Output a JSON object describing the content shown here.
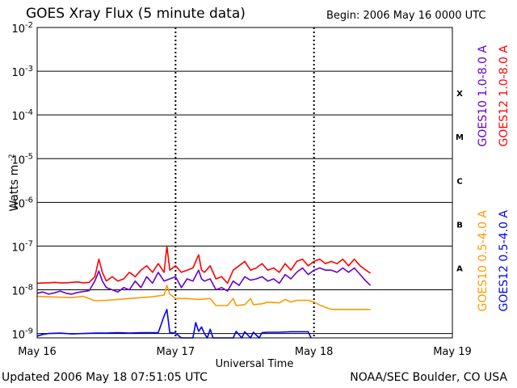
{
  "header": {
    "title": "GOES Xray Flux (5 minute data)",
    "begin": "Begin:  2006 May 16 0000 UTC"
  },
  "footer": {
    "updated": "Updated 2006 May 18 07:51:05 UTC",
    "credit": "NOAA/SEC Boulder, CO USA"
  },
  "chart_data": {
    "type": "line",
    "title": "GOES Xray Flux (5 minute data)",
    "xlabel": "Universal Time",
    "ylabel": "Watts m",
    "ylabel_exponent": "-2",
    "x_unit": "hours since 2006 May 16 0000 UTC",
    "xlim": [
      0,
      72
    ],
    "x_ticks": [
      {
        "x": 0,
        "label": "May 16"
      },
      {
        "x": 24,
        "label": "May 17"
      },
      {
        "x": 48,
        "label": "May 18"
      },
      {
        "x": 72,
        "label": "May 19"
      }
    ],
    "y_scale": "log",
    "ylim_exp": [
      -9.1,
      -2
    ],
    "y_ticks": [
      {
        "exp": -9,
        "base": "10",
        "power": "-9"
      },
      {
        "exp": -8,
        "base": "10",
        "power": "-8"
      },
      {
        "exp": -7,
        "base": "10",
        "power": "-7"
      },
      {
        "exp": -6,
        "base": "10",
        "power": "-6"
      },
      {
        "exp": -5,
        "base": "10",
        "power": "-5"
      },
      {
        "exp": -4,
        "base": "10",
        "power": "-4"
      },
      {
        "exp": -3,
        "base": "10",
        "power": "-3"
      },
      {
        "exp": -2,
        "base": "10",
        "power": "-2"
      }
    ],
    "flare_classes": [
      {
        "label": "A",
        "exp": -7.5
      },
      {
        "label": "B",
        "exp": -6.5
      },
      {
        "label": "C",
        "exp": -5.5
      },
      {
        "label": "M",
        "exp": -4.5
      },
      {
        "label": "X",
        "exp": -3.5
      }
    ],
    "grid": true,
    "legend_position": "right",
    "series": [
      {
        "name": "GOES10 1.0-8.0 A",
        "color": "#6600cc",
        "points": [
          [
            0,
            -8.08
          ],
          [
            1,
            -8.05
          ],
          [
            2,
            -8.1
          ],
          [
            3,
            -8.07
          ],
          [
            4,
            -8.03
          ],
          [
            5,
            -8.08
          ],
          [
            6,
            -8.1
          ],
          [
            7,
            -8.06
          ],
          [
            8,
            -8.04
          ],
          [
            9,
            -8.02
          ],
          [
            10,
            -7.8
          ],
          [
            10.7,
            -7.57
          ],
          [
            11.3,
            -7.8
          ],
          [
            12,
            -7.95
          ],
          [
            13,
            -8.0
          ],
          [
            14,
            -8.05
          ],
          [
            15,
            -7.95
          ],
          [
            16,
            -8.0
          ],
          [
            17,
            -7.8
          ],
          [
            18,
            -7.95
          ],
          [
            19,
            -7.7
          ],
          [
            20,
            -7.85
          ],
          [
            21,
            -7.6
          ],
          [
            22,
            -7.8
          ],
          [
            23,
            -7.75
          ],
          [
            24,
            -7.7
          ],
          [
            25,
            -7.95
          ],
          [
            26,
            -7.75
          ],
          [
            27,
            -7.8
          ],
          [
            28,
            -7.55
          ],
          [
            28.5,
            -7.75
          ],
          [
            29,
            -7.8
          ],
          [
            30,
            -7.75
          ],
          [
            31,
            -8.0
          ],
          [
            32,
            -7.95
          ],
          [
            33,
            -8.03
          ],
          [
            34,
            -7.8
          ],
          [
            35,
            -7.9
          ],
          [
            36,
            -7.7
          ],
          [
            37,
            -7.78
          ],
          [
            38,
            -7.75
          ],
          [
            39,
            -7.7
          ],
          [
            40,
            -7.8
          ],
          [
            41,
            -7.75
          ],
          [
            42,
            -7.85
          ],
          [
            43,
            -7.65
          ],
          [
            44,
            -7.75
          ],
          [
            45,
            -7.6
          ],
          [
            46,
            -7.5
          ],
          [
            47,
            -7.65
          ],
          [
            48,
            -7.55
          ],
          [
            49,
            -7.5
          ],
          [
            50,
            -7.55
          ],
          [
            51,
            -7.55
          ],
          [
            52,
            -7.6
          ],
          [
            53,
            -7.5
          ],
          [
            54,
            -7.6
          ],
          [
            55,
            -7.5
          ],
          [
            56,
            -7.65
          ],
          [
            57,
            -7.8
          ],
          [
            57.8,
            -7.9
          ]
        ]
      },
      {
        "name": "GOES12 1.0-8.0 A",
        "color": "#ff0000",
        "points": [
          [
            0,
            -7.85
          ],
          [
            1,
            -7.84
          ],
          [
            2,
            -7.84
          ],
          [
            3,
            -7.83
          ],
          [
            4,
            -7.84
          ],
          [
            5,
            -7.84
          ],
          [
            6,
            -7.83
          ],
          [
            7,
            -7.82
          ],
          [
            8,
            -7.84
          ],
          [
            9,
            -7.83
          ],
          [
            10,
            -7.7
          ],
          [
            10.7,
            -7.3
          ],
          [
            11.3,
            -7.6
          ],
          [
            12,
            -7.8
          ],
          [
            13,
            -7.7
          ],
          [
            14,
            -7.8
          ],
          [
            15,
            -7.75
          ],
          [
            16,
            -7.6
          ],
          [
            17,
            -7.7
          ],
          [
            18,
            -7.55
          ],
          [
            19,
            -7.45
          ],
          [
            20,
            -7.6
          ],
          [
            21,
            -7.4
          ],
          [
            22,
            -7.6
          ],
          [
            22.5,
            -7.0
          ],
          [
            23,
            -7.55
          ],
          [
            24,
            -7.45
          ],
          [
            25,
            -7.6
          ],
          [
            26,
            -7.55
          ],
          [
            27,
            -7.5
          ],
          [
            28,
            -7.2
          ],
          [
            28.5,
            -7.55
          ],
          [
            29,
            -7.6
          ],
          [
            30,
            -7.45
          ],
          [
            31,
            -7.75
          ],
          [
            32,
            -7.7
          ],
          [
            33,
            -7.85
          ],
          [
            34,
            -7.55
          ],
          [
            35,
            -7.45
          ],
          [
            36,
            -7.35
          ],
          [
            37,
            -7.55
          ],
          [
            38,
            -7.5
          ],
          [
            39,
            -7.4
          ],
          [
            40,
            -7.55
          ],
          [
            41,
            -7.5
          ],
          [
            42,
            -7.6
          ],
          [
            43,
            -7.4
          ],
          [
            44,
            -7.55
          ],
          [
            45,
            -7.35
          ],
          [
            46,
            -7.3
          ],
          [
            47,
            -7.45
          ],
          [
            48,
            -7.35
          ],
          [
            49,
            -7.3
          ],
          [
            50,
            -7.4
          ],
          [
            51,
            -7.35
          ],
          [
            52,
            -7.4
          ],
          [
            53,
            -7.3
          ],
          [
            54,
            -7.45
          ],
          [
            55,
            -7.3
          ],
          [
            56,
            -7.45
          ],
          [
            57,
            -7.55
          ],
          [
            57.8,
            -7.62
          ]
        ]
      },
      {
        "name": "GOES10 0.5-4.0 A",
        "color": "#ff9900",
        "points": [
          [
            0,
            -8.15
          ],
          [
            2,
            -8.16
          ],
          [
            4,
            -8.17
          ],
          [
            6,
            -8.18
          ],
          [
            8,
            -8.15
          ],
          [
            10,
            -8.25
          ],
          [
            12,
            -8.24
          ],
          [
            14,
            -8.22
          ],
          [
            16,
            -8.2
          ],
          [
            18,
            -8.18
          ],
          [
            20,
            -8.16
          ],
          [
            22,
            -8.12
          ],
          [
            22.5,
            -7.9
          ],
          [
            23,
            -8.1
          ],
          [
            24,
            -8.2
          ],
          [
            26,
            -8.2
          ],
          [
            28,
            -8.22
          ],
          [
            30,
            -8.2
          ],
          [
            31,
            -8.36
          ],
          [
            33,
            -8.36
          ],
          [
            34,
            -8.2
          ],
          [
            34.5,
            -8.36
          ],
          [
            36,
            -8.34
          ],
          [
            37,
            -8.2
          ],
          [
            37.5,
            -8.34
          ],
          [
            39,
            -8.32
          ],
          [
            40,
            -8.28
          ],
          [
            42,
            -8.3
          ],
          [
            43,
            -8.22
          ],
          [
            44,
            -8.28
          ],
          [
            45,
            -8.24
          ],
          [
            47,
            -8.24
          ],
          [
            48,
            -8.28
          ],
          [
            49,
            -8.35
          ],
          [
            50,
            -8.4
          ],
          [
            51,
            -8.45
          ],
          [
            57.8,
            -8.45
          ]
        ]
      },
      {
        "name": "GOES12 0.5-4.0 A",
        "color": "#0000ff",
        "points": [
          [
            0,
            -9.06
          ],
          [
            1,
            -9.02
          ],
          [
            2,
            -9.0
          ],
          [
            4,
            -8.99
          ],
          [
            6,
            -9.01
          ],
          [
            8,
            -9.0
          ],
          [
            10,
            -8.99
          ],
          [
            12,
            -8.99
          ],
          [
            14,
            -8.98
          ],
          [
            16,
            -8.99
          ],
          [
            18,
            -8.98
          ],
          [
            20,
            -8.98
          ],
          [
            21,
            -8.98
          ],
          [
            22,
            -8.6
          ],
          [
            22.5,
            -8.45
          ],
          [
            23,
            -8.98
          ],
          [
            24,
            -8.99
          ],
          [
            25,
            -9.1
          ],
          [
            27,
            -9.1
          ],
          [
            27.5,
            -8.75
          ],
          [
            28,
            -8.95
          ],
          [
            28.5,
            -8.85
          ],
          [
            29,
            -9.0
          ],
          [
            29.5,
            -9.1
          ],
          [
            30,
            -8.9
          ],
          [
            30.5,
            -9.1
          ],
          [
            34,
            -9.1
          ],
          [
            34.5,
            -8.95
          ],
          [
            35.5,
            -9.1
          ],
          [
            36,
            -8.96
          ],
          [
            37,
            -9.1
          ],
          [
            37.5,
            -8.97
          ],
          [
            38.5,
            -9.1
          ],
          [
            39,
            -8.98
          ],
          [
            40,
            -8.97
          ],
          [
            42,
            -8.97
          ],
          [
            44,
            -8.96
          ],
          [
            47,
            -8.96
          ],
          [
            47.5,
            -9.1
          ]
        ]
      }
    ]
  }
}
